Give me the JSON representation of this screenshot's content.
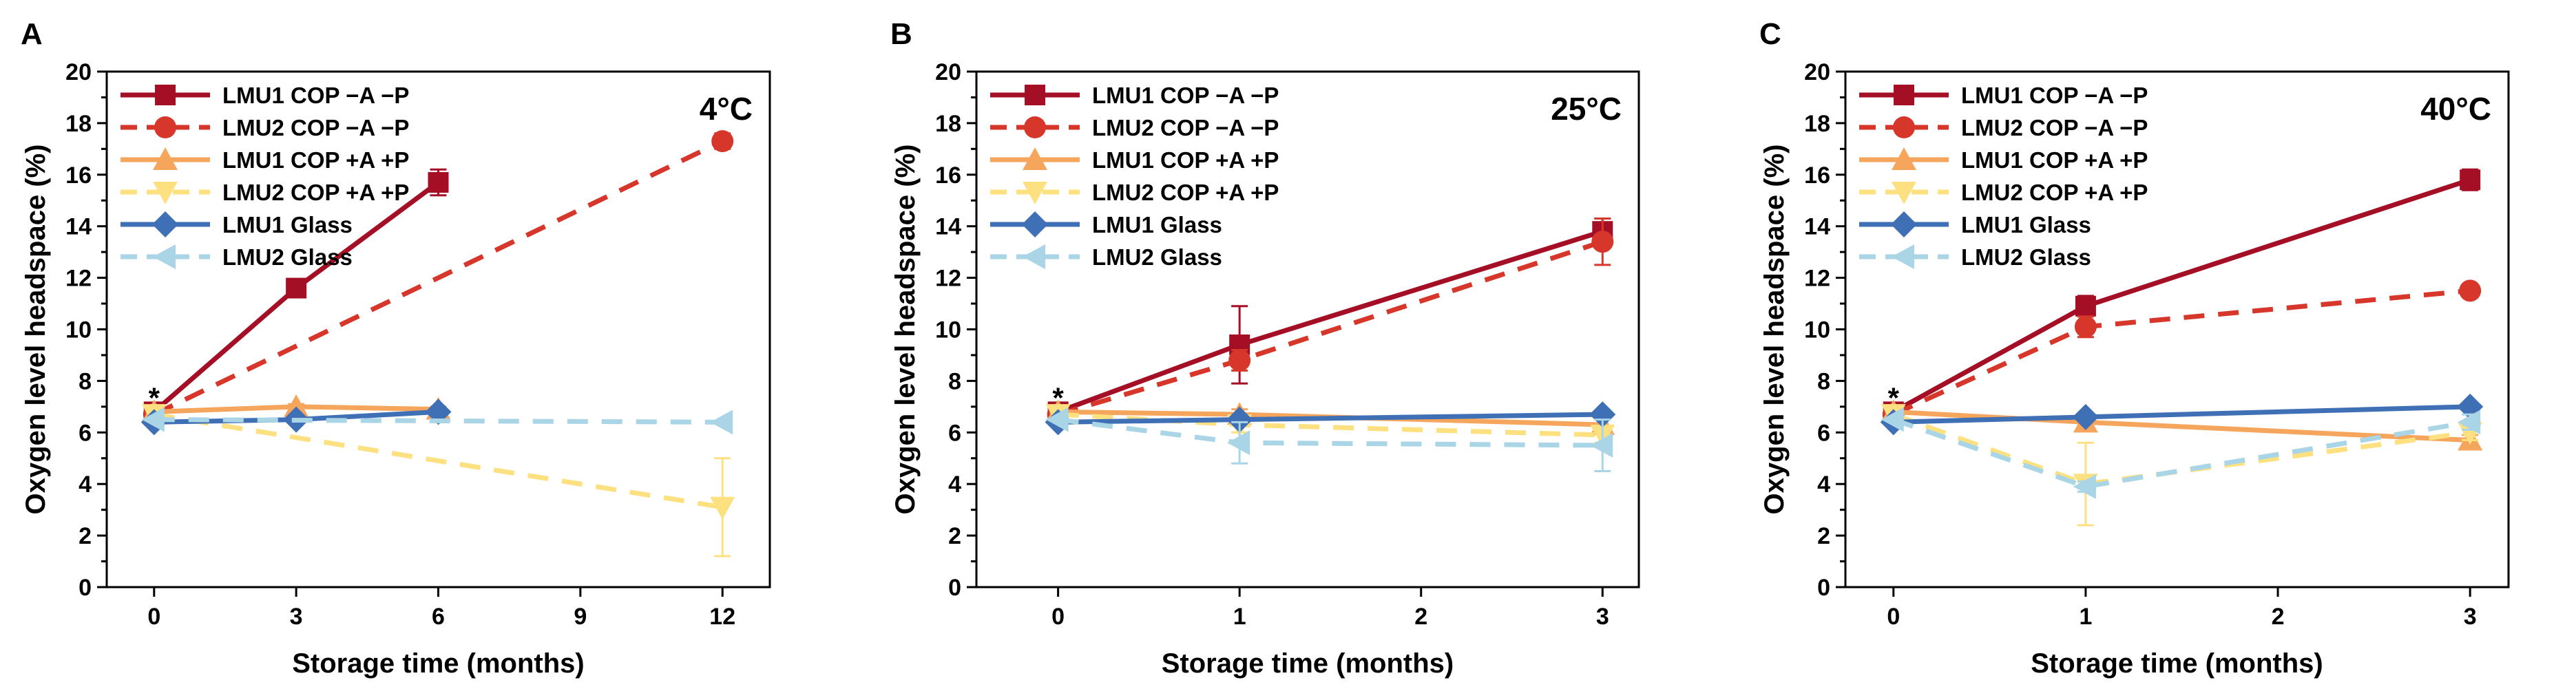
{
  "chart_data": [
    {
      "type": "line",
      "panel_label": "A",
      "temperature": "4°C",
      "xlabel": "Storage time (months)",
      "ylabel": "Oxygen level headspace (%)",
      "xlim": [
        -1,
        13
      ],
      "ylim": [
        0,
        20
      ],
      "xticks": [
        0,
        3,
        6,
        9,
        12
      ],
      "yticks": [
        0,
        2,
        4,
        6,
        8,
        10,
        12,
        14,
        16,
        18,
        20
      ],
      "annotation": "*",
      "annotation_x": 0,
      "annotation_y": 7.6,
      "legend_position": "top-left",
      "series": [
        {
          "name": "LMU1 COP −A −P",
          "x": [
            0,
            3,
            6
          ],
          "values": [
            6.8,
            11.6,
            15.7
          ],
          "errors": [
            0.15,
            0.2,
            0.5
          ],
          "color": "#a50f26",
          "dash": "solid",
          "marker": "square"
        },
        {
          "name": "LMU2 COP −A −P",
          "x": [
            0,
            12
          ],
          "values": [
            6.7,
            17.3
          ],
          "errors": [
            0.15,
            0.3
          ],
          "color": "#d7362b",
          "dash": "dashed",
          "marker": "circle"
        },
        {
          "name": "LMU1 COP +A +P",
          "x": [
            0,
            3,
            6
          ],
          "values": [
            6.8,
            7.0,
            6.9
          ],
          "errors": [
            0.1,
            0.1,
            0.1
          ],
          "color": "#f6a55c",
          "dash": "solid",
          "marker": "triangle-up"
        },
        {
          "name": "LMU2 COP +A +P",
          "x": [
            0,
            12
          ],
          "values": [
            6.7,
            3.1
          ],
          "errors": [
            0.1,
            1.9
          ],
          "color": "#fde181",
          "dash": "dashed",
          "marker": "triangle-down"
        },
        {
          "name": "LMU1 Glass",
          "x": [
            0,
            3,
            6
          ],
          "values": [
            6.4,
            6.5,
            6.8
          ],
          "errors": [
            0.05,
            0.05,
            0.05
          ],
          "color": "#3f6fb4",
          "dash": "solid",
          "marker": "diamond"
        },
        {
          "name": "LMU2 Glass",
          "x": [
            0,
            12
          ],
          "values": [
            6.5,
            6.4
          ],
          "errors": [
            0.05,
            0.05
          ],
          "color": "#a9d5e6",
          "dash": "dashed",
          "marker": "triangle-left"
        }
      ]
    },
    {
      "type": "line",
      "panel_label": "B",
      "temperature": "25°C",
      "xlabel": "Storage time (months)",
      "ylabel": "Oxygen level headspace (%)",
      "xlim": [
        -0.45,
        3.2
      ],
      "ylim": [
        0,
        20
      ],
      "xticks": [
        0,
        1,
        2,
        3
      ],
      "yticks": [
        0,
        2,
        4,
        6,
        8,
        10,
        12,
        14,
        16,
        18,
        20
      ],
      "annotation": "*",
      "annotation_x": 0,
      "annotation_y": 7.6,
      "legend_position": "top-left",
      "series": [
        {
          "name": "LMU1 COP −A −P",
          "x": [
            0,
            1,
            3
          ],
          "values": [
            6.8,
            9.4,
            13.8
          ],
          "errors": [
            0.15,
            1.5,
            0.5
          ],
          "color": "#a50f26",
          "dash": "solid",
          "marker": "square"
        },
        {
          "name": "LMU2 COP −A −P",
          "x": [
            0,
            1,
            3
          ],
          "values": [
            6.7,
            8.8,
            13.4
          ],
          "errors": [
            0.15,
            0.4,
            0.9
          ],
          "color": "#d7362b",
          "dash": "dashed",
          "marker": "circle"
        },
        {
          "name": "LMU1 COP +A +P",
          "x": [
            0,
            1,
            3
          ],
          "values": [
            6.8,
            6.7,
            6.3
          ],
          "errors": [
            0.1,
            0.2,
            0.2
          ],
          "color": "#f6a55c",
          "dash": "solid",
          "marker": "triangle-up"
        },
        {
          "name": "LMU2 COP +A +P",
          "x": [
            0,
            1,
            3
          ],
          "values": [
            6.7,
            6.3,
            5.9
          ],
          "errors": [
            0.1,
            0.3,
            0.3
          ],
          "color": "#fde181",
          "dash": "dashed",
          "marker": "triangle-down"
        },
        {
          "name": "LMU1 Glass",
          "x": [
            0,
            1,
            3
          ],
          "values": [
            6.4,
            6.5,
            6.7
          ],
          "errors": [
            0.05,
            0.05,
            0.05
          ],
          "color": "#3f6fb4",
          "dash": "solid",
          "marker": "diamond"
        },
        {
          "name": "LMU2 Glass",
          "x": [
            0,
            1,
            3
          ],
          "values": [
            6.5,
            5.6,
            5.5
          ],
          "errors": [
            0.05,
            0.8,
            1.0
          ],
          "color": "#a9d5e6",
          "dash": "dashed",
          "marker": "triangle-left"
        }
      ]
    },
    {
      "type": "line",
      "panel_label": "C",
      "temperature": "40°C",
      "xlabel": "Storage time (months)",
      "ylabel": "Oxygen level headspace (%)",
      "xlim": [
        -0.25,
        3.2
      ],
      "ylim": [
        0,
        20
      ],
      "xticks": [
        0,
        1,
        2,
        3
      ],
      "yticks": [
        0,
        2,
        4,
        6,
        8,
        10,
        12,
        14,
        16,
        18,
        20
      ],
      "annotation": "*",
      "annotation_x": 0,
      "annotation_y": 7.6,
      "legend_position": "top-left",
      "series": [
        {
          "name": "LMU1 COP −A −P",
          "x": [
            0,
            1,
            3
          ],
          "values": [
            6.8,
            10.9,
            15.8
          ],
          "errors": [
            0.15,
            0.4,
            0.4
          ],
          "color": "#a50f26",
          "dash": "solid",
          "marker": "square"
        },
        {
          "name": "LMU2 COP −A −P",
          "x": [
            0,
            1,
            3
          ],
          "values": [
            6.7,
            10.1,
            11.5
          ],
          "errors": [
            0.15,
            0.4,
            0.2
          ],
          "color": "#d7362b",
          "dash": "dashed",
          "marker": "circle"
        },
        {
          "name": "LMU1 COP +A +P",
          "x": [
            0,
            1,
            3
          ],
          "values": [
            6.8,
            6.4,
            5.7
          ],
          "errors": [
            0.1,
            0.1,
            0.2
          ],
          "color": "#f6a55c",
          "dash": "solid",
          "marker": "triangle-up"
        },
        {
          "name": "LMU2 COP +A +P",
          "x": [
            0,
            1,
            3
          ],
          "values": [
            6.7,
            4.0,
            6.0
          ],
          "errors": [
            0.1,
            1.6,
            0.3
          ],
          "color": "#fde181",
          "dash": "dashed",
          "marker": "triangle-down"
        },
        {
          "name": "LMU1 Glass",
          "x": [
            0,
            1,
            3
          ],
          "values": [
            6.4,
            6.6,
            7.0
          ],
          "errors": [
            0.05,
            0.05,
            0.05
          ],
          "color": "#3f6fb4",
          "dash": "solid",
          "marker": "diamond"
        },
        {
          "name": "LMU2 Glass",
          "x": [
            0,
            1,
            3
          ],
          "values": [
            6.5,
            3.9,
            6.4
          ],
          "errors": [
            0.05,
            0.2,
            0.3
          ],
          "color": "#a9d5e6",
          "dash": "dashed",
          "marker": "triangle-left"
        }
      ]
    }
  ]
}
